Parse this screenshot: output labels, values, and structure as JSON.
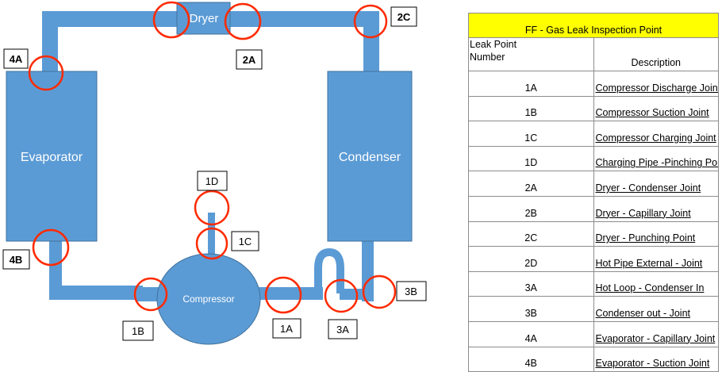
{
  "components": {
    "dryer": "Dryer",
    "evaporator": "Evaporator",
    "condenser": "Condenser",
    "compressor": "Compressor"
  },
  "callouts": [
    {
      "id": "2C",
      "text": "2C",
      "bold": true
    },
    {
      "id": "4A",
      "text": "4A",
      "bold": true
    },
    {
      "id": "2A",
      "text": "2A",
      "bold": true
    },
    {
      "id": "4B",
      "text": "4B",
      "bold": true
    },
    {
      "id": "1D",
      "text": "1D",
      "bold": false
    },
    {
      "id": "1C",
      "text": "1C",
      "bold": false
    },
    {
      "id": "3B",
      "text": "3B",
      "bold": false
    },
    {
      "id": "1B",
      "text": "1B",
      "bold": false
    },
    {
      "id": "1A",
      "text": "1A",
      "bold": false
    },
    {
      "id": "3A",
      "text": "3A",
      "bold": false
    }
  ],
  "table": {
    "title": "FF - Gas Leak  Inspection Point",
    "header_number_line1": "Leak Point",
    "header_number_line2": "Number",
    "header_description": "Description",
    "rows": [
      {
        "number": "1A",
        "description": "Compressor  Discharge Joint"
      },
      {
        "number": "1B",
        "description": "Compressor  Suction Joint"
      },
      {
        "number": "1C",
        "description": "Compressor Charging Joint"
      },
      {
        "number": "1D",
        "description": "Charging Pipe -Pinching Point"
      },
      {
        "number": "2A",
        "description": "Dryer - Condenser Joint"
      },
      {
        "number": "2B",
        "description": "Dryer - Capillary Joint"
      },
      {
        "number": "2C",
        "description": "Dryer - Punching Point"
      },
      {
        "number": "2D",
        "description": "Hot Pipe External - Joint"
      },
      {
        "number": "3A",
        "description": "Hot Loop - Condenser In"
      },
      {
        "number": "3B",
        "description": "Condenser out -  Joint"
      },
      {
        "number": "4A",
        "description": "Evaporator - Capillary Joint"
      },
      {
        "number": "4B",
        "description": "Evaporator - Suction Joint"
      }
    ]
  },
  "colors": {
    "pipe": "#5b9bd5",
    "component": "#5b9bd5",
    "component_border": "#41719c",
    "leak_ring": "#ff2a00",
    "table_title_bg": "#ffff00"
  }
}
